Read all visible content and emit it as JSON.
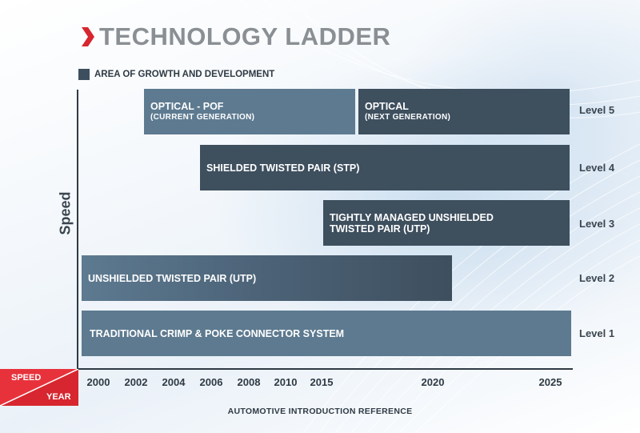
{
  "title": "TECHNOLOGY LADDER",
  "legend": {
    "label": "AREA OF GROWTH AND DEVELOPMENT",
    "color": "#3d4f5f"
  },
  "y_axis_label": "Speed",
  "x_axis_label": "AUTOMOTIVE INTRODUCTION REFERENCE",
  "corner": {
    "speed": "SPEED",
    "year": "YEAR",
    "color": "#d7262f"
  },
  "years": [
    "2000",
    "2002",
    "2004",
    "2006",
    "2008",
    "2010",
    "2015",
    "2020",
    "2025"
  ],
  "levels": [
    "Level 1",
    "Level 2",
    "Level 3",
    "Level 4",
    "Level 5"
  ],
  "bars": {
    "optical_pof": {
      "main": "OPTICAL - POF",
      "sub": "(CURRENT GENERATION)"
    },
    "optical_next": {
      "main": "OPTICAL",
      "sub": "(NEXT GENERATION)"
    },
    "stp": {
      "main": "SHIELDED TWISTED PAIR (STP)"
    },
    "tm_utp": {
      "line1": "TIGHTLY MANAGED UNSHIELDED",
      "line2": "TWISTED PAIR (UTP)"
    },
    "utp": {
      "main": "UNSHIELDED TWISTED PAIR (UTP)"
    },
    "crimp": {
      "main": "TRADITIONAL CRIMP & POKE CONNECTOR SYSTEM"
    }
  }
}
